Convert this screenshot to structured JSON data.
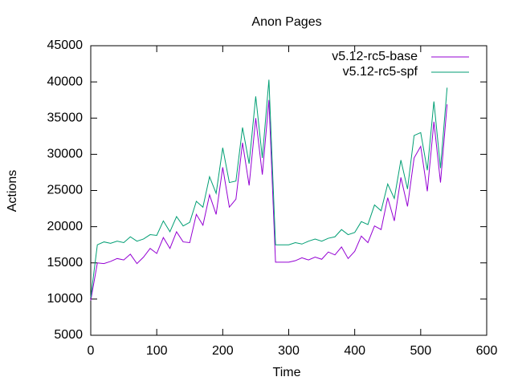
{
  "chart_data": {
    "type": "line",
    "title": "Anon Pages",
    "x_label": "Time",
    "y_label": "Actions",
    "x": [
      0,
      10,
      20,
      30,
      40,
      50,
      60,
      70,
      80,
      90,
      100,
      110,
      120,
      130,
      140,
      150,
      160,
      170,
      180,
      190,
      200,
      210,
      220,
      230,
      240,
      250,
      260,
      270,
      280,
      290,
      300,
      310,
      320,
      330,
      340,
      350,
      360,
      370,
      380,
      390,
      400,
      410,
      420,
      430,
      440,
      450,
      460,
      470,
      480,
      490,
      500,
      510,
      520,
      530,
      540
    ],
    "series": [
      {
        "name": "v5.12-rc5-base",
        "color": "#9400d3",
        "values": [
          9800,
          15000,
          14900,
          15200,
          15600,
          15400,
          16200,
          14900,
          15800,
          17000,
          16300,
          18500,
          17000,
          19300,
          17900,
          17800,
          21700,
          20200,
          24400,
          21700,
          28200,
          22700,
          23800,
          31600,
          25700,
          35000,
          27200,
          37500,
          15100,
          15100,
          15100,
          15300,
          15700,
          15400,
          15800,
          15500,
          16500,
          16100,
          17200,
          15600,
          16600,
          18700,
          17800,
          20100,
          19600,
          24000,
          20800,
          26800,
          22800,
          29500,
          31100,
          24900,
          34500,
          26100,
          36900
        ]
      },
      {
        "name": "v5.12-rc5-spf",
        "color": "#009e73",
        "values": [
          10200,
          17500,
          17900,
          17700,
          18000,
          17800,
          18600,
          18000,
          18300,
          18900,
          18800,
          20800,
          19300,
          21400,
          20100,
          20600,
          23500,
          22700,
          26900,
          24600,
          30900,
          26100,
          26300,
          33700,
          28700,
          38000,
          29500,
          40300,
          17500,
          17500,
          17500,
          17800,
          17600,
          18000,
          18300,
          18000,
          18400,
          18600,
          19600,
          18900,
          19200,
          20700,
          20300,
          23000,
          22200,
          25900,
          23900,
          29200,
          25200,
          32600,
          33000,
          27800,
          37300,
          28100,
          39200
        ]
      }
    ],
    "xlim": [
      0,
      600
    ],
    "xticks": [
      0,
      100,
      200,
      300,
      400,
      500,
      600
    ],
    "ylim": [
      5000,
      45000
    ],
    "yticks": [
      5000,
      10000,
      15000,
      20000,
      25000,
      30000,
      35000,
      40000,
      45000
    ],
    "legend": "top-right"
  }
}
